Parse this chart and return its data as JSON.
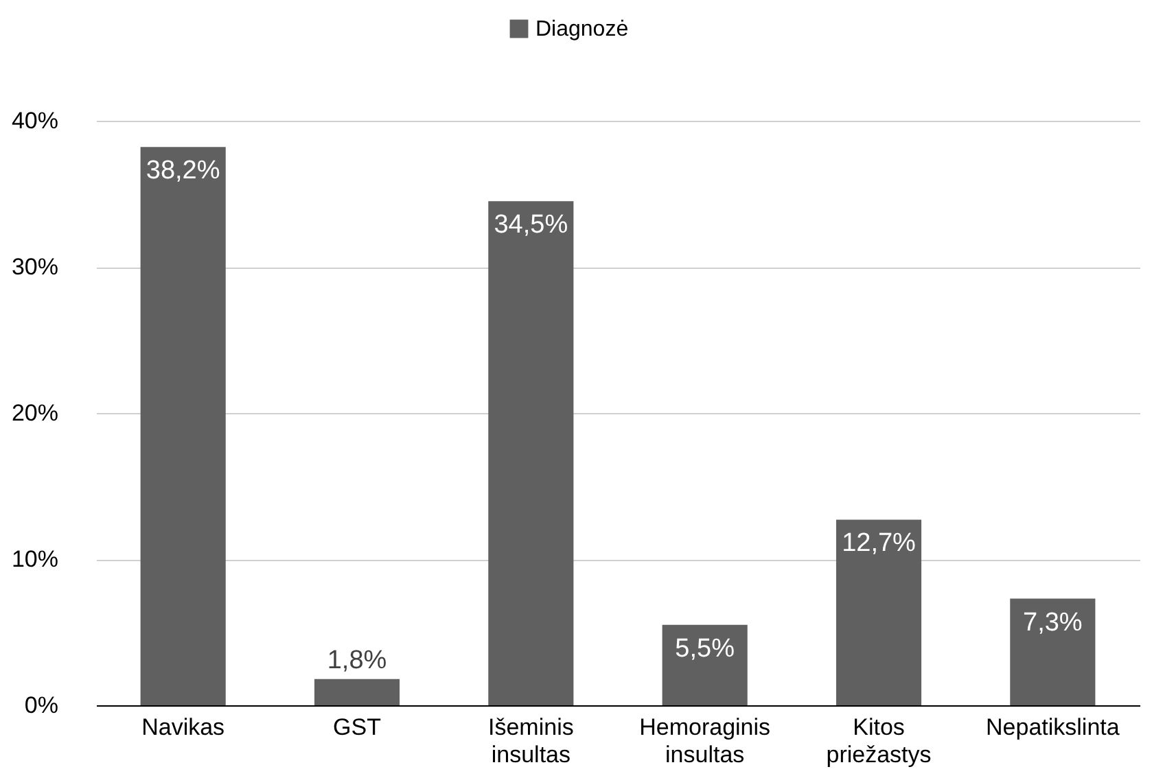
{
  "chart_data": {
    "type": "bar",
    "categories": [
      "Navikas",
      "GST",
      "Išeminis insultas",
      "Hemoraginis insultas",
      "Kitos priežastys",
      "Nepatikslinta"
    ],
    "series": [
      {
        "name": "Diagnozė",
        "color": "#606060",
        "values": [
          38.2,
          1.8,
          34.5,
          5.5,
          12.7,
          7.3
        ],
        "value_labels": [
          "38,2%",
          "1,8%",
          "34,5%",
          "5,5%",
          "12,7%",
          "7,3%"
        ]
      }
    ],
    "ylim": [
      0,
      40
    ],
    "yticks": [
      {
        "value": 0,
        "label": "0%"
      },
      {
        "value": 10,
        "label": "10%"
      },
      {
        "value": 20,
        "label": "20%"
      },
      {
        "value": 30,
        "label": "30%"
      },
      {
        "value": 40,
        "label": "40%"
      }
    ],
    "grid": "y",
    "legend": "top"
  }
}
